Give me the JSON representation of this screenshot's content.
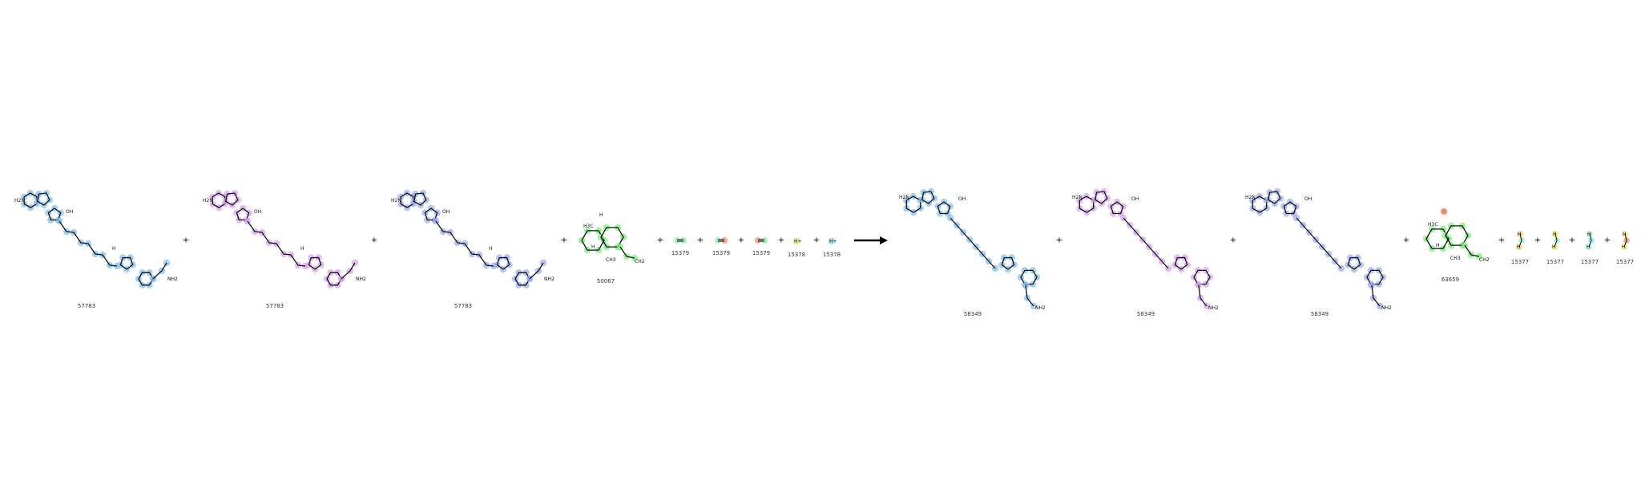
{
  "reaction": {
    "reactants": [
      {
        "id": "57783"
      },
      {
        "id": "57783"
      },
      {
        "id": "57783"
      },
      {
        "id": "50067"
      },
      {
        "id": "15379"
      },
      {
        "id": "15379"
      },
      {
        "id": "15379"
      },
      {
        "id": "15378"
      },
      {
        "id": "15378"
      }
    ],
    "products": [
      {
        "id": "58349"
      },
      {
        "id": "58349"
      },
      {
        "id": "58349"
      },
      {
        "id": "63659"
      },
      {
        "id": "15377"
      },
      {
        "id": "15377"
      },
      {
        "id": "15377"
      },
      {
        "id": "15377"
      }
    ],
    "plus_sign": "+",
    "atom_labels": {
      "nh2": "NH2",
      "h2n": "H2N",
      "ch3": "CH3",
      "ch2": "CH2",
      "h3c": "H3C",
      "h": "H",
      "o": "O",
      "oh": "OH",
      "hplus": "H+"
    },
    "highlight_colors": {
      "nadph_a": "#87c3ee",
      "nadph_b": "#d9a6ef",
      "nadph_c": "#9db0f0",
      "terpene": "#7cf07c",
      "o2_a": "#9cf0b8",
      "o2_b": "#f0a58a",
      "hplus_a": "#e8f07a",
      "hplus_b": "#8ee8f0",
      "water_a": "#f0d27a",
      "water_b": "#9ff0c8"
    }
  }
}
